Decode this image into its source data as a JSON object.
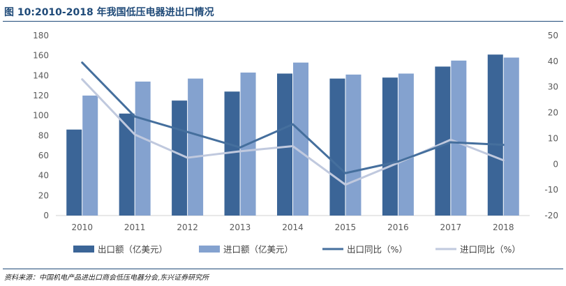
{
  "header": {
    "title": "图 10:2010-2018 年我国低压电器进出口情况"
  },
  "footer": {
    "source": "资料来源：中国机电产品进出口商会低压电器分会,东兴证券研究所"
  },
  "colors": {
    "export_bar": "#3b6597",
    "import_bar": "#84a2cf",
    "export_line": "#456f9d",
    "import_line": "#c0c9de"
  },
  "chart_data": {
    "type": "bar",
    "categories": [
      "2010",
      "2011",
      "2012",
      "2013",
      "2014",
      "2015",
      "2016",
      "2017",
      "2018"
    ],
    "series": [
      {
        "name": "出口额（亿美元）",
        "type": "bar",
        "axis": "left",
        "values": [
          86,
          102,
          115,
          124,
          142,
          137,
          138,
          149,
          161
        ]
      },
      {
        "name": "进口额（亿美元）",
        "type": "bar",
        "axis": "left",
        "values": [
          120,
          134,
          137,
          143,
          153,
          141,
          142,
          155,
          158
        ]
      },
      {
        "name": "出口同比（%）",
        "type": "line",
        "axis": "right",
        "values": [
          39.5,
          18.5,
          12.5,
          6.5,
          15.5,
          -3.5,
          1.0,
          8.5,
          7.5
        ]
      },
      {
        "name": "进口同比（%）",
        "type": "line",
        "axis": "right",
        "values": [
          33.0,
          11.5,
          2.5,
          5.0,
          7.0,
          -8.0,
          0.5,
          9.5,
          1.5
        ]
      }
    ],
    "y_left": {
      "min": 0,
      "max": 180,
      "ticks": [
        "0",
        "20",
        "40",
        "60",
        "80",
        "100",
        "120",
        "140",
        "160",
        "180"
      ]
    },
    "y_right": {
      "min": -20,
      "max": 50,
      "ticks": [
        "-20",
        "-10",
        "0",
        "10",
        "20",
        "30",
        "40",
        "50"
      ]
    },
    "grid": false,
    "legend": "bottom"
  }
}
